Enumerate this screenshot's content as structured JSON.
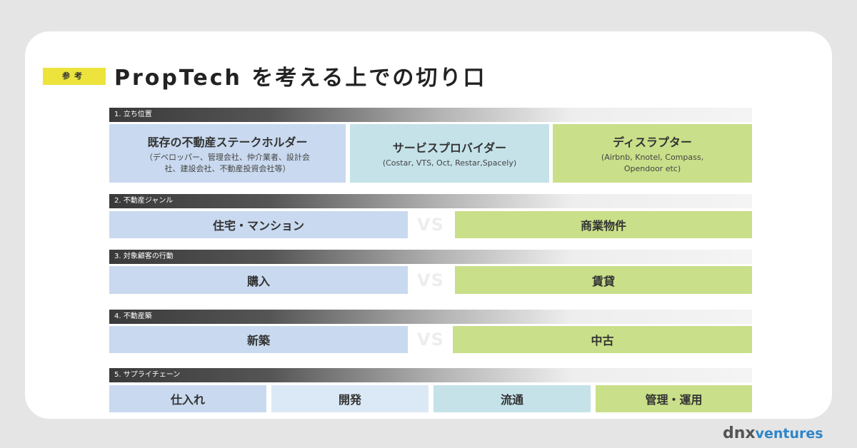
{
  "tag": "参考",
  "title": "PropTech を考える上での切り口",
  "sections": [
    {
      "header": "1. 立ち位置",
      "boxes": [
        {
          "title": "既存の不動産ステークホルダー",
          "sub": "（デベロッパー、管理会社、仲介業者、設計会社、建設会社、不動産投資会社等）"
        },
        {
          "title": "サービスプロバイダー",
          "sub": "(Costar, VTS, Oct, Restar,Spacely)"
        },
        {
          "title": "ディスラプター",
          "sub": "(Airbnb, Knotel, Compass, Opendoor etc)"
        }
      ]
    },
    {
      "header": "2. 不動産ジャンル",
      "left": "住宅・マンション",
      "vs": "VS",
      "right": "商業物件"
    },
    {
      "header": "3. 対象顧客の行動",
      "left": "購入",
      "vs": "VS",
      "right": "賃貸"
    },
    {
      "header": "4. 不動産築",
      "left": "新築",
      "vs": "VS",
      "right": "中古"
    },
    {
      "header": "5. サプライチェーン",
      "items": [
        "仕入れ",
        "開発",
        "流通",
        "管理・運用"
      ]
    }
  ],
  "logo": {
    "dnx": "dnx",
    "ventures": "ventures"
  },
  "colors": {
    "tag": "#ece43c",
    "blue": "#c9d9ef",
    "light_blue": "#dbe8f6",
    "cyan": "#c5e2e9",
    "green": "#c9df89",
    "accent": "#2e86c8"
  }
}
